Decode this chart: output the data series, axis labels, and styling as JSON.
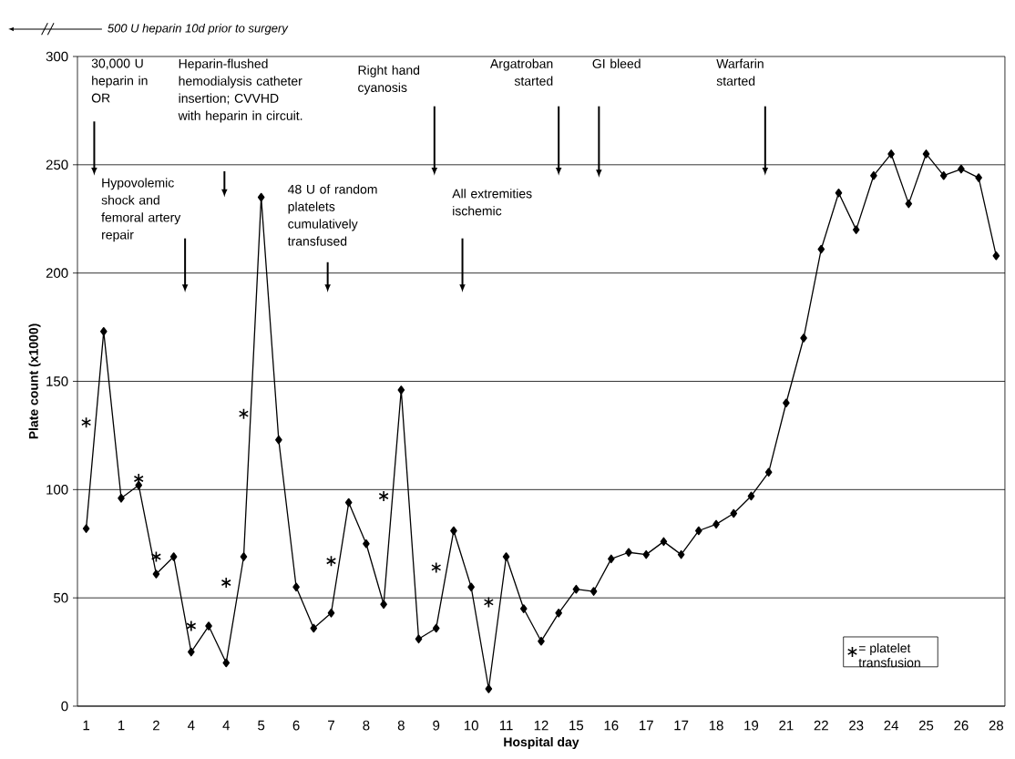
{
  "chart_data": {
    "type": "line",
    "xlabel": "Hospital day",
    "ylabel": "Plate count (x1000)",
    "categories": [
      "1",
      null,
      "1",
      null,
      "2",
      null,
      "4",
      null,
      "4",
      null,
      "5",
      null,
      "6",
      null,
      "7",
      null,
      "8",
      null,
      "8",
      null,
      "9",
      null,
      "10",
      null,
      "11",
      null,
      "12",
      null,
      "15",
      null,
      "16",
      null,
      "17",
      null,
      "17",
      null,
      "18",
      null,
      "19",
      null,
      "21",
      null,
      "22",
      null,
      "23",
      null,
      "24",
      null,
      "25",
      null,
      "26",
      null,
      "28"
    ],
    "ylim": [
      0,
      300
    ],
    "yticks": [
      0,
      50,
      100,
      150,
      200,
      250,
      300
    ],
    "grid": "y",
    "legend": "bottom right",
    "series": [
      {
        "color": "#000000",
        "marker": "diamond",
        "values": [
          82,
          173,
          96,
          102,
          61,
          69,
          25,
          37,
          20,
          69,
          235,
          123,
          55,
          36,
          43,
          94,
          75,
          47,
          146,
          31,
          36,
          81,
          55,
          8,
          69,
          45,
          30,
          43,
          54,
          53,
          68,
          71,
          70,
          76,
          70,
          81,
          84,
          89,
          97,
          108,
          140,
          170,
          211,
          237,
          220,
          245,
          255,
          232,
          255,
          245,
          248,
          244,
          208
        ]
      },
      {
        "type": "scatter",
        "name": "= platelet transfusion",
        "color": "#000000",
        "marker": "cross",
        "values": [
          131,
          null,
          null,
          105,
          69,
          null,
          37,
          null,
          57,
          135,
          null,
          null,
          null,
          null,
          67,
          null,
          null,
          97,
          null,
          null,
          64,
          null,
          null,
          48,
          null,
          null,
          null,
          null,
          null,
          null,
          null,
          null,
          null,
          null,
          null,
          null,
          null,
          null,
          null,
          null,
          null,
          null,
          null,
          null,
          null,
          null,
          null,
          null,
          null,
          null,
          null,
          null,
          null
        ]
      }
    ],
    "annotations": [
      "500 U heparin 10d prior to surgery",
      "30,000 U heparin in OR",
      "Heparin-flushed hemodialysis catheter insertion; CVVHD with heparin in circuit.",
      "Right hand cyanosis",
      "Argatroban started",
      "GI bleed",
      "Warfarin started",
      "Hypovolemic shock and femoral artery repair",
      "48 U of random platelets cumulatively transfused",
      "All extremities ischemic"
    ]
  }
}
